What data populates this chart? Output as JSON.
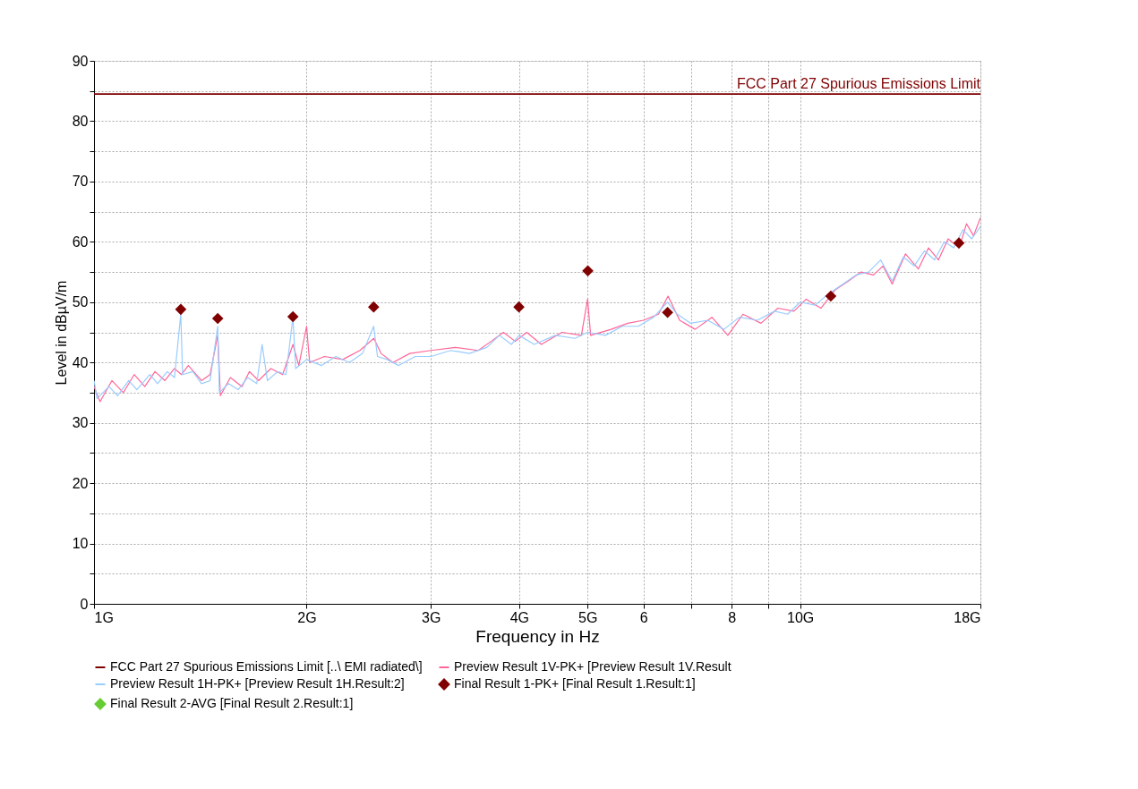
{
  "chart_data": {
    "type": "line",
    "xlabel": "Frequency in Hz",
    "ylabel": "Level in dBµV/m",
    "log": "x",
    "grid": true,
    "legend": "bottom",
    "xlim": [
      1,
      18
    ],
    "xticks": [
      {
        "value": 1,
        "label": "1G"
      },
      {
        "value": 2,
        "label": "2G"
      },
      {
        "value": 3,
        "label": "3G"
      },
      {
        "value": 4,
        "label": "4G"
      },
      {
        "value": 5,
        "label": "5G"
      },
      6,
      {
        "value": 7,
        "label": null
      },
      8,
      {
        "value": 9,
        "label": null
      },
      {
        "value": 10,
        "label": "10G"
      },
      {
        "value": 18,
        "label": "18G"
      }
    ],
    "ylim": [
      0,
      90
    ],
    "yticks": [
      0,
      {
        "value": 5,
        "label": null
      },
      10,
      {
        "value": 15,
        "label": null
      },
      20,
      {
        "value": 25,
        "label": null
      },
      30,
      {
        "value": 35,
        "label": null
      },
      40,
      {
        "value": 45,
        "label": null
      },
      50,
      {
        "value": 55,
        "label": null
      },
      60,
      {
        "value": 65,
        "label": null
      },
      70,
      {
        "value": 75,
        "label": null
      },
      80,
      {
        "value": 85,
        "label": null
      },
      90
    ],
    "annotations": [
      {
        "text": "FCC Part 27 Spurious Emissions Limit",
        "x": 18,
        "y": 84.5
      }
    ],
    "series": [
      {
        "name": "FCC Part 27 Spurious Emissions Limit  [..\\ EMI radiated\\]",
        "color": "#800000",
        "x": [
          1,
          18
        ],
        "values": [
          84.5,
          84.5
        ]
      },
      {
        "name": "Preview Result 1V-PK+  [Preview Result 1V.Result",
        "color": "#ff6699",
        "x": [
          1.0,
          1.02,
          1.06,
          1.1,
          1.14,
          1.18,
          1.22,
          1.26,
          1.3,
          1.33,
          1.36,
          1.42,
          1.46,
          1.497,
          1.51,
          1.56,
          1.62,
          1.66,
          1.71,
          1.78,
          1.85,
          1.913,
          1.95,
          2.0,
          2.02,
          2.12,
          2.25,
          2.38,
          2.49,
          2.55,
          2.65,
          2.8,
          3.0,
          3.25,
          3.5,
          3.65,
          3.8,
          3.95,
          4.1,
          4.3,
          4.6,
          4.9,
          5.0,
          5.05,
          5.4,
          5.7,
          6.0,
          6.3,
          6.5,
          6.75,
          7.1,
          7.5,
          7.9,
          8.3,
          8.8,
          9.3,
          9.8,
          10.2,
          10.7,
          11.2,
          11.7,
          12.2,
          12.7,
          13.1,
          13.5,
          14.1,
          14.7,
          15.2,
          15.7,
          16.2,
          16.8,
          17.2,
          17.6,
          18.0
        ],
        "values": [
          36,
          33.5,
          37,
          35,
          38,
          36,
          38.5,
          37,
          39,
          38,
          39.5,
          37,
          38,
          44.5,
          34.5,
          37.5,
          36,
          38.5,
          37,
          39,
          38,
          43,
          39.5,
          46,
          40,
          41,
          40.5,
          42,
          44,
          41.5,
          40,
          41.5,
          42,
          42.5,
          42,
          43.5,
          45,
          43.5,
          45,
          43,
          45,
          44.5,
          50.5,
          44.5,
          45.5,
          46.5,
          47,
          48,
          51,
          47,
          45.5,
          47.5,
          44.5,
          48,
          46.5,
          49,
          48.5,
          50.5,
          49,
          52,
          53.5,
          55,
          54.5,
          56,
          53,
          58,
          55.5,
          59,
          57,
          60.5,
          59,
          63,
          61,
          64
        ]
      },
      {
        "name": "Preview Result 1H-PK+  [Preview Result 1H.Result:2]",
        "color": "#99ccff",
        "x": [
          1.0,
          1.01,
          1.05,
          1.08,
          1.12,
          1.15,
          1.2,
          1.23,
          1.27,
          1.3,
          1.327,
          1.335,
          1.38,
          1.42,
          1.46,
          1.497,
          1.505,
          1.55,
          1.6,
          1.65,
          1.7,
          1.73,
          1.76,
          1.82,
          1.87,
          1.913,
          1.93,
          2.0,
          2.1,
          2.2,
          2.3,
          2.4,
          2.489,
          2.52,
          2.6,
          2.7,
          2.85,
          3.0,
          3.2,
          3.4,
          3.6,
          3.75,
          3.9,
          4.0,
          4.2,
          4.5,
          4.8,
          5.0,
          5.3,
          5.6,
          5.9,
          6.2,
          6.49,
          6.7,
          7.0,
          7.4,
          7.8,
          8.2,
          8.7,
          9.2,
          9.6,
          10.0,
          10.5,
          11.0,
          11.5,
          12.0,
          12.5,
          13.0,
          13.5,
          14.0,
          14.5,
          15.0,
          15.5,
          16.0,
          16.5,
          17.0,
          17.5,
          18.0
        ],
        "values": [
          37,
          34,
          36,
          34.5,
          37,
          35.5,
          38,
          36.5,
          38.5,
          37.5,
          48,
          38,
          38.5,
          36.5,
          37,
          46,
          35,
          36.5,
          35.5,
          37.5,
          36.5,
          43,
          37,
          38.5,
          38,
          47.5,
          39,
          40.5,
          39.5,
          41,
          40,
          41.5,
          46,
          41,
          40.5,
          39.5,
          41,
          41,
          42,
          41.5,
          42.5,
          44.5,
          43,
          44.5,
          43,
          44.5,
          44,
          45,
          44.5,
          46,
          46,
          47.5,
          50,
          48,
          46.5,
          47,
          45.5,
          47.5,
          47,
          48.5,
          48,
          50,
          49.5,
          51.5,
          53,
          54.5,
          55,
          57,
          53.5,
          57.5,
          56,
          58.5,
          57,
          60,
          59,
          62,
          60.5,
          62.5
        ]
      },
      {
        "name": "Final Result 1-PK+  [Final Result 1.Result:1]",
        "type": "scatter",
        "marker": "diamond",
        "color": "#800000",
        "x": [
          1.327,
          1.497,
          1.913,
          2.489,
          3.997,
          5.004,
          6.49,
          11.05,
          16.78
        ],
        "values": [
          48.8,
          47.3,
          47.6,
          49.2,
          49.2,
          55.2,
          48.3,
          51.0,
          59.8
        ]
      },
      {
        "name": "Final Result 2-AVG  [Final Result 2.Result:1]",
        "type": "scatter",
        "marker": "diamond",
        "color": "#66cc33"
      }
    ]
  }
}
